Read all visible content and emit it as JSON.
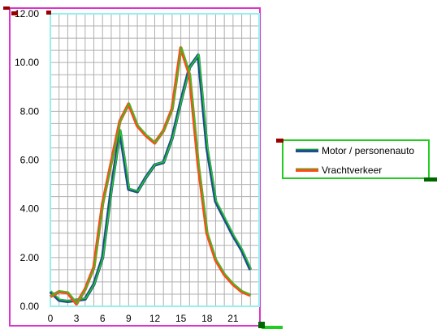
{
  "chart_data": {
    "type": "line",
    "title": "",
    "xlabel": "",
    "ylabel": "",
    "x": [
      0,
      1,
      2,
      3,
      4,
      5,
      6,
      7,
      8,
      9,
      10,
      11,
      12,
      13,
      14,
      15,
      16,
      17,
      18,
      19,
      20,
      21,
      22,
      23
    ],
    "x_tick_labels": [
      "0",
      "3",
      "6",
      "9",
      "12",
      "15",
      "18",
      "21"
    ],
    "x_tick_values": [
      0,
      3,
      6,
      9,
      12,
      15,
      18,
      21
    ],
    "y_tick_labels": [
      "0.00",
      "2.00",
      "4.00",
      "6.00",
      "8.00",
      "10.00",
      "12.00"
    ],
    "ylim": [
      0,
      12
    ],
    "xlim": [
      0,
      24
    ],
    "grid": "vertical and horizontal",
    "legend_position": "right",
    "series": [
      {
        "name": "Motor / personenauto",
        "color": "#1f4e8c",
        "values": [
          0.6,
          0.25,
          0.2,
          0.25,
          0.3,
          0.9,
          2.0,
          4.8,
          7.2,
          4.8,
          4.7,
          5.3,
          5.8,
          5.9,
          6.9,
          8.4,
          9.8,
          10.3,
          6.5,
          4.3,
          3.6,
          2.9,
          2.3,
          1.5
        ]
      },
      {
        "name": "Vrachtverkeer",
        "color": "#ff4a1a",
        "values": [
          0.4,
          0.6,
          0.55,
          0.1,
          0.7,
          1.6,
          4.2,
          5.9,
          7.6,
          8.3,
          7.4,
          7.0,
          6.7,
          7.2,
          8.1,
          10.6,
          9.5,
          5.8,
          3.0,
          1.9,
          1.3,
          0.9,
          0.6,
          0.45
        ]
      }
    ],
    "highlight_color": "#22cc22",
    "plot_border_color": "#99eeee",
    "frame_color": "#dd33cc"
  }
}
